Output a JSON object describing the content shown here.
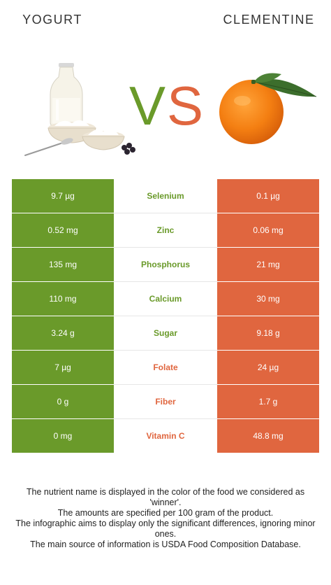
{
  "left_food": {
    "name": "YOGURT",
    "color": "#6a9a2a"
  },
  "right_food": {
    "name": "CLEMENTINE",
    "color": "#e0663f"
  },
  "vs": {
    "v": "V",
    "s": "S"
  },
  "rows": [
    {
      "nutrient": "Selenium",
      "left": "9.7 µg",
      "right": "0.1 µg",
      "winner": "left"
    },
    {
      "nutrient": "Zinc",
      "left": "0.52 mg",
      "right": "0.06 mg",
      "winner": "left"
    },
    {
      "nutrient": "Phosphorus",
      "left": "135 mg",
      "right": "21 mg",
      "winner": "left"
    },
    {
      "nutrient": "Calcium",
      "left": "110 mg",
      "right": "30 mg",
      "winner": "left"
    },
    {
      "nutrient": "Sugar",
      "left": "3.24 g",
      "right": "9.18 g",
      "winner": "left"
    },
    {
      "nutrient": "Folate",
      "left": "7 µg",
      "right": "24 µg",
      "winner": "right"
    },
    {
      "nutrient": "Fiber",
      "left": "0 g",
      "right": "1.7 g",
      "winner": "right"
    },
    {
      "nutrient": "Vitamin C",
      "left": "0 mg",
      "right": "48.8 mg",
      "winner": "right"
    }
  ],
  "footnote": [
    "The nutrient name is displayed in the color of the food we considered as 'winner'.",
    "The amounts are specified per 100 gram of the product.",
    "The infographic aims to display only the significant differences, ignoring minor ones.",
    "The main source of information is USDA Food Composition Database."
  ]
}
